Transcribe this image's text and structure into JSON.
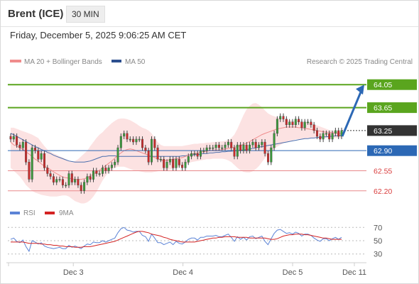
{
  "header": {
    "instrument": "Brent (ICE)",
    "timeframe": "30 MIN",
    "datetime": "Friday, December 5, 2025 9:06:25 AM CET"
  },
  "legend": {
    "ma20_label": "MA 20 + Bollinger Bands",
    "ma50_label": "MA 50",
    "credit": "Research © 2025 Trading Central",
    "rsi_label": "RSI",
    "rsi_ma_label": "9MA"
  },
  "colors": {
    "resistance": "#5aa51e",
    "support": "#e9888a",
    "pivot": "#2c68b5",
    "current": "#333333",
    "arrow": "#2c68b5",
    "ma50": "#4b6fae",
    "ma20": "#f08c8c",
    "bollinger_fill": "#fbd8d8",
    "candle_up": "#3a9a3a",
    "candle_down": "#cc2a2a",
    "rsi": "#5b83d6",
    "rsi_ma": "#d42222"
  },
  "chart_data": {
    "type": "candlestick",
    "title": "",
    "price_ylim": [
      61.9,
      64.35
    ],
    "levels": [
      {
        "value": 64.05,
        "label": "64.05",
        "kind": "resistance"
      },
      {
        "value": 63.65,
        "label": "63.65",
        "kind": "resistance"
      },
      {
        "value": 63.25,
        "label": "63.25",
        "kind": "current"
      },
      {
        "value": 62.9,
        "label": "62.90",
        "kind": "pivot"
      },
      {
        "value": 62.55,
        "label": "62.55",
        "kind": "support"
      },
      {
        "value": 62.2,
        "label": "62.20",
        "kind": "support"
      }
    ],
    "projection": {
      "from": 63.15,
      "to": 64.05,
      "direction": "up"
    },
    "close": [
      63.1,
      63.15,
      63.0,
      62.95,
      63.05,
      62.7,
      62.4,
      62.95,
      62.9,
      62.75,
      62.85,
      62.6,
      62.5,
      62.45,
      62.35,
      62.4,
      62.4,
      62.3,
      62.3,
      62.5,
      62.35,
      62.4,
      62.3,
      62.2,
      62.35,
      62.45,
      62.4,
      62.55,
      62.5,
      62.5,
      62.6,
      62.55,
      62.6,
      62.65,
      62.7,
      62.95,
      63.15,
      63.2,
      63.1,
      63.1,
      63.05,
      63.1,
      63.1,
      62.95,
      62.9,
      62.7,
      63.1,
      62.95,
      62.75,
      62.75,
      62.6,
      62.7,
      62.75,
      62.6,
      62.75,
      62.65,
      62.6,
      62.7,
      62.8,
      62.85,
      62.85,
      62.8,
      62.9,
      62.9,
      62.95,
      62.95,
      62.95,
      63.0,
      62.95,
      62.95,
      63.0,
      63.05,
      62.95,
      62.8,
      63.0,
      62.9,
      63.0,
      62.9,
      63.0,
      63.05,
      62.95,
      63.0,
      63.05,
      62.85,
      62.7,
      62.95,
      63.2,
      63.45,
      63.5,
      63.45,
      63.35,
      63.4,
      63.35,
      63.45,
      63.4,
      63.3,
      63.4,
      63.4,
      63.35,
      63.25,
      63.15,
      63.1,
      63.2,
      63.2,
      63.1,
      63.2,
      63.25,
      63.15,
      63.25
    ],
    "ma20": [
      63.05,
      63.0,
      62.98,
      62.95,
      62.92,
      62.88,
      62.84,
      62.8,
      62.75,
      62.72,
      62.67,
      62.63,
      62.6,
      62.57,
      62.53,
      62.5,
      62.47,
      62.44,
      62.43,
      62.42,
      62.41,
      62.4,
      62.4,
      62.4,
      62.41,
      62.43,
      62.46,
      62.49,
      62.53,
      62.56,
      62.6,
      62.64,
      62.68,
      62.72,
      62.77,
      62.82,
      62.86,
      62.9,
      62.92,
      62.93,
      62.92,
      62.9,
      62.88,
      62.86,
      62.84,
      62.82,
      62.8,
      62.78,
      62.76,
      62.74,
      62.72,
      62.73,
      62.74,
      62.75,
      62.76,
      62.77,
      62.78,
      62.8,
      62.82,
      62.84,
      62.85,
      62.86,
      62.87,
      62.88,
      62.89,
      62.9,
      62.91,
      62.91,
      62.91,
      62.92,
      62.93,
      62.94,
      62.95,
      62.96,
      62.97,
      62.99,
      63.01,
      63.03,
      63.06,
      63.09,
      63.12,
      63.15,
      63.18,
      63.2,
      63.22,
      63.24,
      63.26,
      63.28,
      63.29,
      63.3,
      63.31,
      63.31,
      63.31,
      63.31,
      63.3,
      63.3,
      63.29,
      63.28,
      63.27,
      63.26,
      63.25,
      63.24,
      63.23,
      63.22,
      63.22,
      63.21,
      63.21,
      63.2,
      63.2
    ],
    "bb_upper": [
      63.3,
      63.3,
      63.28,
      63.26,
      63.24,
      63.22,
      63.2,
      63.18,
      63.15,
      63.12,
      63.05,
      62.98,
      62.92,
      62.88,
      62.85,
      62.83,
      62.8,
      62.78,
      62.75,
      62.72,
      62.7,
      62.72,
      62.75,
      62.8,
      62.85,
      62.9,
      62.98,
      63.05,
      63.12,
      63.18,
      63.22,
      63.28,
      63.33,
      63.38,
      63.42,
      63.45,
      63.46,
      63.46,
      63.45,
      63.43,
      63.4,
      63.37,
      63.33,
      63.3,
      63.28,
      63.25,
      63.2,
      63.12,
      63.05,
      63.0,
      62.98,
      62.98,
      62.98,
      62.98,
      62.98,
      62.98,
      62.98,
      62.99,
      63.0,
      63.01,
      63.02,
      63.02,
      63.03,
      63.03,
      63.04,
      63.04,
      63.05,
      63.05,
      63.06,
      63.06,
      63.07,
      63.08,
      63.12,
      63.18,
      63.28,
      63.4,
      63.52,
      63.62,
      63.68,
      63.72,
      63.73,
      63.7,
      63.66,
      63.6,
      63.55,
      63.52,
      63.5,
      63.48,
      63.46,
      63.45,
      63.44,
      63.43,
      63.42,
      63.42,
      63.41,
      63.41,
      63.4,
      63.4,
      63.38,
      63.36,
      63.34,
      63.32,
      63.3,
      63.28,
      63.26,
      63.25,
      63.24,
      63.23,
      63.22
    ],
    "bb_lower": [
      62.6,
      62.55,
      62.5,
      62.45,
      62.38,
      62.3,
      62.25,
      62.2,
      62.17,
      62.15,
      62.13,
      62.12,
      62.11,
      62.1,
      62.1,
      62.1,
      62.11,
      62.12,
      62.12,
      62.1,
      62.06,
      62.02,
      62.0,
      61.98,
      61.98,
      62.0,
      62.04,
      62.1,
      62.18,
      62.28,
      62.38,
      62.46,
      62.53,
      62.58,
      62.6,
      62.62,
      62.62,
      62.62,
      62.6,
      62.58,
      62.56,
      62.55,
      62.54,
      62.53,
      62.52,
      62.52,
      62.52,
      62.53,
      62.54,
      62.55,
      62.55,
      62.56,
      62.57,
      62.58,
      62.6,
      62.62,
      62.64,
      62.66,
      62.68,
      62.7,
      62.71,
      62.72,
      62.73,
      62.74,
      62.75,
      62.75,
      62.76,
      62.76,
      62.76,
      62.76,
      62.75,
      62.73,
      62.7,
      62.65,
      62.6,
      62.56,
      62.53,
      62.52,
      62.52,
      62.54,
      62.58,
      62.63,
      62.7,
      62.77,
      62.83,
      62.88,
      62.93,
      62.97,
      63.0,
      63.03,
      63.05,
      63.07,
      63.08,
      63.1,
      63.1,
      63.11,
      63.11,
      63.12,
      63.12,
      63.12,
      63.12,
      63.12,
      63.12,
      63.12,
      63.12,
      63.12,
      63.12,
      63.12,
      63.12
    ],
    "ma50": [
      63.2,
      63.18,
      63.15,
      63.12,
      63.09,
      63.06,
      63.03,
      63.0,
      62.97,
      62.95,
      62.92,
      62.9,
      62.87,
      62.85,
      62.82,
      62.8,
      62.78,
      62.76,
      62.74,
      62.72,
      62.71,
      62.7,
      62.7,
      62.7,
      62.7,
      62.71,
      62.72,
      62.74,
      62.76,
      62.78,
      62.8,
      62.8,
      62.81,
      62.81,
      62.81,
      62.8,
      62.8,
      62.8,
      62.8,
      62.8,
      62.8,
      62.8,
      62.8,
      62.8,
      62.8,
      62.8,
      62.8,
      62.8,
      62.8,
      62.8,
      62.8,
      62.8,
      62.8,
      62.8,
      62.8,
      62.8,
      62.81,
      62.81,
      62.82,
      62.82,
      62.83,
      62.83,
      62.84,
      62.85,
      62.85,
      62.86,
      62.86,
      62.87,
      62.87,
      62.88,
      62.88,
      62.89,
      62.89,
      62.9,
      62.9,
      62.91,
      62.91,
      62.92,
      62.93,
      62.94,
      62.95,
      62.96,
      62.97,
      62.98,
      62.99,
      63.0,
      63.01,
      63.02,
      63.03,
      63.04,
      63.05,
      63.06,
      63.07,
      63.08,
      63.09,
      63.1,
      63.11,
      63.11,
      63.12,
      63.12,
      63.13,
      63.13,
      63.14,
      63.14,
      63.15,
      63.15,
      63.16,
      63.16,
      63.17
    ],
    "rsi_ylim": [
      20,
      80
    ],
    "rsi_levels": [
      70,
      50,
      30
    ],
    "rsi": [
      52,
      54,
      49,
      47,
      51,
      41,
      34,
      50,
      48,
      45,
      47,
      42,
      40,
      39,
      38,
      39,
      40,
      38,
      38,
      43,
      40,
      42,
      40,
      38,
      42,
      45,
      44,
      48,
      47,
      47,
      50,
      48,
      50,
      52,
      54,
      62,
      68,
      70,
      66,
      65,
      63,
      64,
      64,
      58,
      56,
      49,
      60,
      54,
      47,
      47,
      44,
      46,
      48,
      44,
      49,
      46,
      45,
      48,
      52,
      54,
      54,
      51,
      55,
      55,
      57,
      57,
      57,
      58,
      56,
      56,
      58,
      60,
      55,
      49,
      56,
      52,
      55,
      51,
      56,
      57,
      53,
      55,
      57,
      49,
      44,
      53,
      61,
      66,
      67,
      64,
      61,
      62,
      60,
      63,
      61,
      57,
      60,
      60,
      58,
      54,
      51,
      49,
      53,
      53,
      50,
      53,
      55,
      52,
      55
    ],
    "rsi_ma": [
      48,
      48,
      48,
      48,
      48,
      47,
      46,
      46,
      46,
      46,
      45,
      45,
      44,
      44,
      43,
      43,
      42,
      42,
      41,
      41,
      41,
      40,
      40,
      40,
      41,
      41,
      41,
      42,
      43,
      44,
      45,
      46,
      47,
      48,
      49,
      51,
      53,
      55,
      57,
      59,
      61,
      63,
      64,
      64,
      63,
      62,
      60,
      59,
      58,
      57,
      55,
      54,
      52,
      51,
      50,
      49,
      48,
      48,
      48,
      48,
      48,
      49,
      50,
      51,
      52,
      53,
      54,
      54,
      55,
      55,
      56,
      56,
      56,
      56,
      55,
      55,
      55,
      55,
      54,
      54,
      54,
      54,
      54,
      54,
      53,
      52,
      52,
      53,
      55,
      57,
      58,
      59,
      59,
      60,
      60,
      60,
      59,
      59,
      58,
      57,
      56,
      55,
      54,
      54,
      53,
      52,
      52,
      52,
      52
    ],
    "x_ticks": [
      {
        "index": 16,
        "label": "Dec 3"
      },
      {
        "index": 44,
        "label": "Dec 4"
      },
      {
        "index": 72,
        "label": "Dec 5"
      },
      {
        "index": 85,
        "label": "Dec 11"
      }
    ],
    "rsi_tick_labels": [
      "70",
      "50",
      "30"
    ]
  }
}
